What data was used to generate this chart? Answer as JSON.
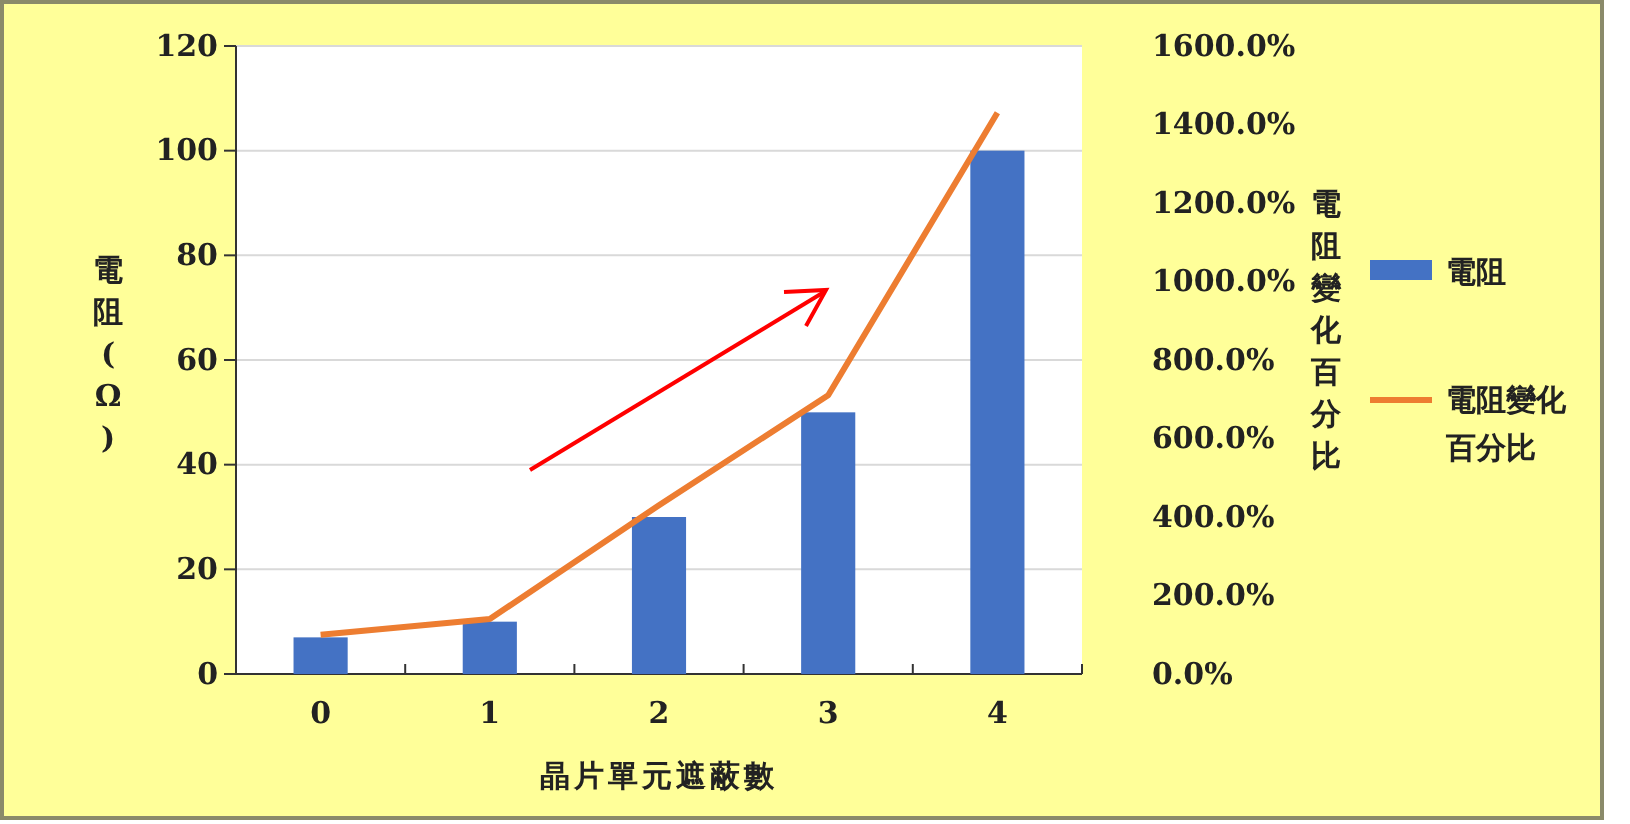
{
  "chart_data": {
    "type": "bar",
    "xlabel": "晶片單元遮蔽數",
    "ylabel": "電阻(Ω)",
    "y2label": "電阻變化百分比",
    "categories": [
      "0",
      "1",
      "2",
      "3",
      "4"
    ],
    "series": [
      {
        "name": "電阻",
        "color": "#4472c4",
        "values": [
          7,
          10,
          30,
          50,
          100
        ]
      },
      {
        "name": "電阻變化百分比",
        "type": "line",
        "axis": "y2",
        "color": "#ed7d31",
        "values": [
          100,
          140,
          430,
          710,
          1430
        ]
      }
    ],
    "ylim": [
      0,
      120
    ],
    "yticks": [
      0,
      20,
      40,
      60,
      80,
      100,
      120
    ],
    "y2lim": [
      0,
      1600
    ],
    "y2ticks": [
      {
        "value": 0,
        "label": "0.0%"
      },
      {
        "value": 200,
        "label": "200.0%"
      },
      {
        "value": 400,
        "label": "400.0%"
      },
      {
        "value": 600,
        "label": "600.0%"
      },
      {
        "value": 800,
        "label": "800.0%"
      },
      {
        "value": 1000,
        "label": "1000.0%"
      },
      {
        "value": 1200,
        "label": "1200.0%"
      },
      {
        "value": 1400,
        "label": "1400.0%"
      },
      {
        "value": 1600,
        "label": "1600.0%"
      }
    ],
    "grid": "y",
    "legend": "right"
  }
}
